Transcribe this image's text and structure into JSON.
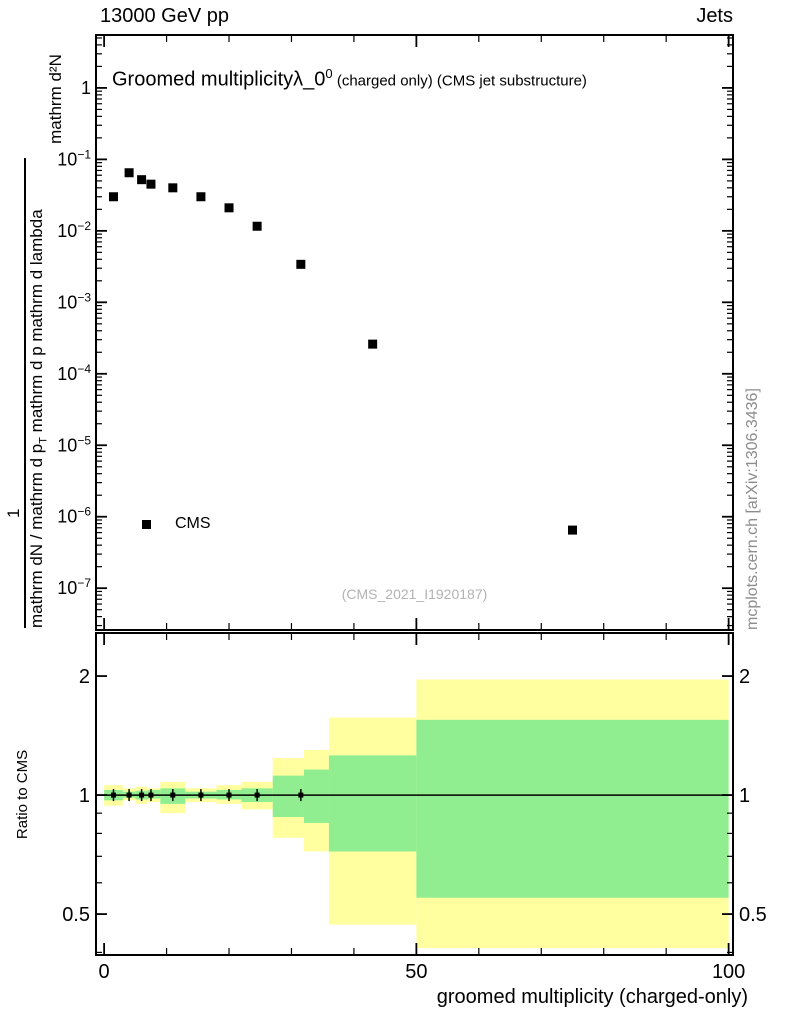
{
  "header": {
    "left": "13000 GeV pp",
    "right": "Jets"
  },
  "main_panel": {
    "title_main": "Groomed multiplicity",
    "title_obs": "λ_0",
    "title_obs_sup": "0",
    "title_suffix": " (charged only) (CMS jet substructure)",
    "watermark": "(CMS_2021_I1920187)",
    "ylabel": {
      "one": "1",
      "numerator": "mathrm d²N",
      "den_a": "mathrm dN / mathrm d p",
      "den_sub": "T",
      "den_b": " mathrm d p mathrm d lambda"
    }
  },
  "side_caption": "mcplots.cern.ch [arXiv:1306.3436]",
  "colors": {
    "band_outer": "#ffffa0",
    "band_inner": "#90ee90",
    "marker": "#000000",
    "watermark": "#b3b3b3",
    "caption": "#8c8c8c"
  },
  "chart_data": [
    {
      "type": "scatter",
      "panel": "main",
      "title": "Groomed multiplicity λ_0^0 (charged only) (CMS jet substructure)",
      "xlabel": "groomed multiplicity (charged-only)",
      "ylabel": "1/(mathrm dN / mathrm d p_T) · mathrm d²N/(mathrm d p mathrm d lambda)",
      "xscale": "linear",
      "yscale": "log",
      "xlim": [
        -1.3,
        100.7
      ],
      "ylim": [
        2.6e-08,
        5.5
      ],
      "xticks_major": [
        0,
        50,
        100
      ],
      "xtick_minor_step": 10,
      "yticks": [
        {
          "v": 1,
          "text": "1"
        },
        {
          "v": 0.1,
          "base": "10",
          "exp": "−1"
        },
        {
          "v": 0.01,
          "base": "10",
          "exp": "−2"
        },
        {
          "v": 0.001,
          "base": "10",
          "exp": "−3"
        },
        {
          "v": 0.0001,
          "base": "10",
          "exp": "−4"
        },
        {
          "v": 1e-05,
          "base": "10",
          "exp": "−5"
        },
        {
          "v": 1e-06,
          "base": "10",
          "exp": "−6"
        },
        {
          "v": 1e-07,
          "base": "10",
          "exp": "−7"
        }
      ],
      "series": [
        {
          "name": "CMS",
          "marker": "filled-square",
          "color": "#000000",
          "points": [
            [
              1.5,
              0.03
            ],
            [
              4,
              0.065
            ],
            [
              6,
              0.052
            ],
            [
              7.5,
              0.045
            ],
            [
              11,
              0.04
            ],
            [
              15.5,
              0.03
            ],
            [
              20,
              0.021
            ],
            [
              24.5,
              0.0116
            ],
            [
              31.5,
              0.0034
            ],
            [
              43,
              0.00026
            ],
            [
              75,
              6.5e-07
            ]
          ]
        }
      ]
    },
    {
      "type": "ratio-bands",
      "panel": "ratio",
      "ylabel": "Ratio to CMS",
      "yscale": "log",
      "ylim": [
        0.394,
        2.57
      ],
      "yticks_major": [
        {
          "v": 2,
          "text": "2"
        },
        {
          "v": 1,
          "text": "1"
        },
        {
          "v": 0.5,
          "text": "0.5"
        }
      ],
      "yticks_minor": [
        0.4,
        0.6,
        0.7,
        0.8,
        0.9
      ],
      "reference_line": 1,
      "bands": [
        {
          "name": "outer-uncertainty-band",
          "color_key": "band_outer",
          "steps": [
            [
              0,
              3,
              0.94,
              1.06
            ],
            [
              3,
              5,
              0.97,
              1.04
            ],
            [
              5,
              7,
              0.95,
              1.05
            ],
            [
              7,
              9,
              0.96,
              1.04
            ],
            [
              9,
              13,
              0.9,
              1.08
            ],
            [
              13,
              18,
              0.96,
              1.04
            ],
            [
              18,
              22,
              0.95,
              1.06
            ],
            [
              22,
              27,
              0.92,
              1.08
            ],
            [
              27,
              32,
              0.78,
              1.24
            ],
            [
              32,
              36,
              0.72,
              1.3
            ],
            [
              36,
              50,
              0.47,
              1.57
            ],
            [
              50,
              100,
              0.41,
              1.96
            ]
          ]
        },
        {
          "name": "inner-uncertainty-band",
          "color_key": "band_inner",
          "steps": [
            [
              0,
              3,
              0.97,
              1.03
            ],
            [
              3,
              5,
              0.985,
              1.02
            ],
            [
              5,
              7,
              0.975,
              1.025
            ],
            [
              7,
              9,
              0.98,
              1.03
            ],
            [
              9,
              13,
              0.95,
              1.04
            ],
            [
              13,
              18,
              0.98,
              1.02
            ],
            [
              18,
              22,
              0.975,
              1.03
            ],
            [
              22,
              27,
              0.96,
              1.04
            ],
            [
              27,
              32,
              0.88,
              1.12
            ],
            [
              32,
              36,
              0.85,
              1.16
            ],
            [
              36,
              50,
              0.72,
              1.26
            ],
            [
              50,
              100,
              0.55,
              1.55
            ]
          ]
        }
      ],
      "ratio_points_x": [
        1.5,
        4,
        6,
        7.5,
        11,
        15.5,
        20,
        24.5,
        31.5
      ]
    }
  ]
}
